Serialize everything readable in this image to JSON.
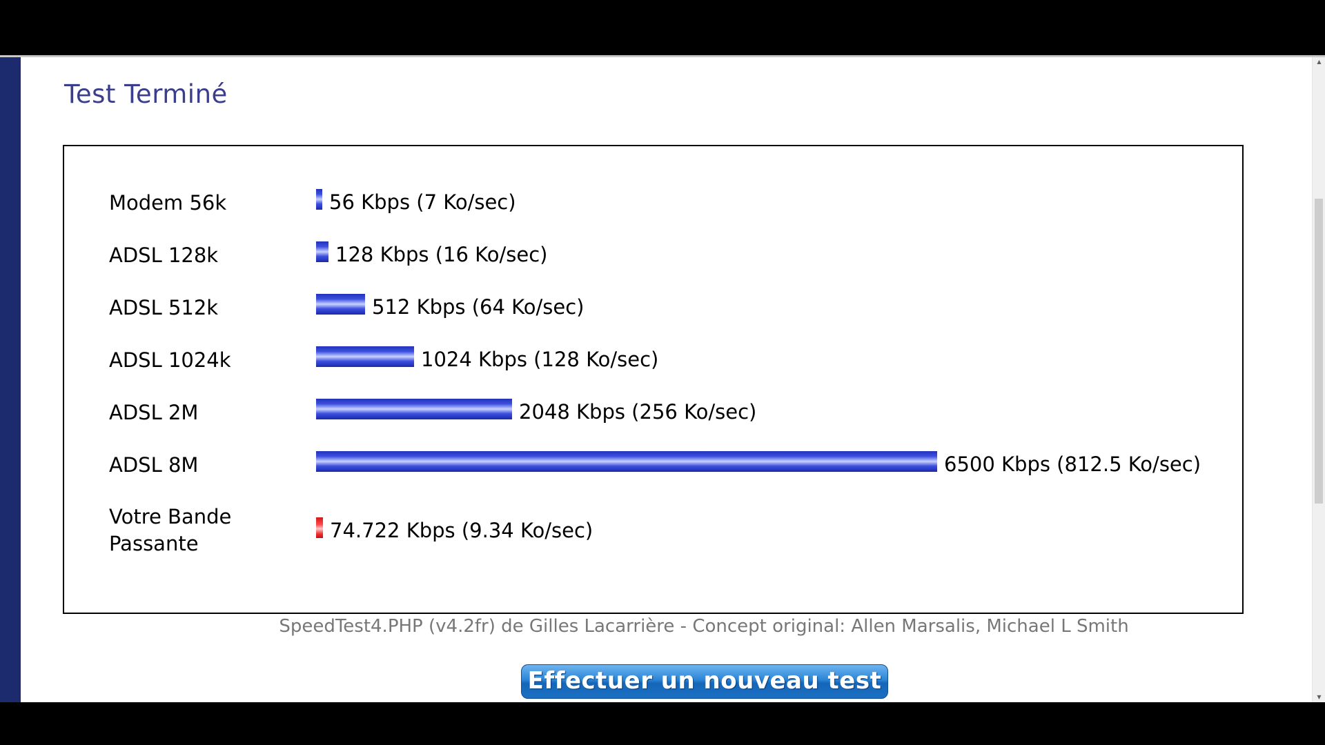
{
  "page": {
    "title": "Test Terminé",
    "credit": "SpeedTest4.PHP (v4.2fr) de Gilles Lacarrière - Concept original: Allen Marsalis, Michael L Smith",
    "new_test_button": "Effectuer un nouveau test"
  },
  "colors": {
    "reference_bar": "#2a3bd0",
    "user_bar": "#e83030",
    "title": "#3a3e8c",
    "button": "#1e74c8"
  },
  "chart_data": {
    "type": "bar",
    "orientation": "horizontal",
    "unit": "Kbps",
    "rows": [
      {
        "label": "Modem 56k",
        "value": 56,
        "value_label": "56 Kbps (7 Ko/sec)",
        "color": "blue"
      },
      {
        "label": "ADSL 128k",
        "value": 128,
        "value_label": "128 Kbps (16 Ko/sec)",
        "color": "blue"
      },
      {
        "label": "ADSL 512k",
        "value": 512,
        "value_label": "512 Kbps (64 Ko/sec)",
        "color": "blue"
      },
      {
        "label": "ADSL 1024k",
        "value": 1024,
        "value_label": "1024 Kbps (128 Ko/sec)",
        "color": "blue"
      },
      {
        "label": "ADSL 2M",
        "value": 2048,
        "value_label": "2048 Kbps (256 Ko/sec)",
        "color": "blue"
      },
      {
        "label": "ADSL 8M",
        "value": 6500,
        "value_label": "6500 Kbps (812.5 Ko/sec)",
        "color": "blue"
      },
      {
        "label": "Votre Bande Passante",
        "value": 74.722,
        "value_label": "74.722 Kbps (9.34 Ko/sec)",
        "color": "red"
      }
    ]
  }
}
